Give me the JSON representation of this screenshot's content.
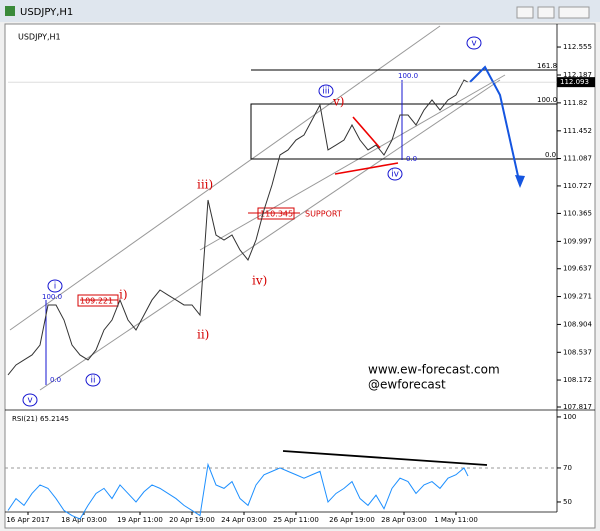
{
  "chart_data": [
    {
      "type": "line",
      "window_title": "USDJPY,H1",
      "title": "USDJPY,H1",
      "x": [
        0,
        2,
        4,
        6,
        8,
        10,
        12,
        14,
        16,
        18,
        20,
        22,
        24,
        26,
        28,
        30,
        32,
        34,
        36,
        38,
        40,
        42,
        44,
        46,
        48,
        50,
        52,
        54,
        56,
        58,
        60,
        62,
        64,
        66,
        68,
        70,
        72,
        74,
        76,
        78,
        80,
        82,
        84,
        86,
        88,
        90,
        92,
        94,
        96,
        98,
        100,
        102,
        104,
        106,
        108,
        110,
        112,
        114,
        115
      ],
      "series": [
        {
          "name": "USDJPY",
          "color": "#333333",
          "values": [
            108.239,
            108.37,
            108.436,
            108.502,
            108.633,
            109.16,
            109.16,
            108.962,
            108.633,
            108.502,
            108.436,
            108.568,
            108.831,
            108.962,
            109.226,
            108.962,
            108.831,
            109.028,
            109.226,
            109.357,
            109.291,
            109.226,
            109.16,
            109.16,
            109.028,
            110.542,
            110.081,
            110.015,
            110.081,
            109.884,
            109.752,
            110.015,
            110.41,
            110.739,
            111.134,
            111.2,
            111.331,
            111.397,
            111.594,
            111.792,
            111.2,
            111.265,
            111.331,
            111.529,
            111.331,
            111.2,
            111.265,
            111.134,
            111.331,
            111.66,
            111.66,
            111.529,
            111.726,
            111.858,
            111.726,
            111.858,
            111.923,
            112.121,
            112.093
          ]
        }
      ],
      "xlim": [
        0,
        136
      ],
      "ylim": [
        107.804,
        112.845
      ],
      "yticks": [
        112.555,
        112.187,
        111.82,
        111.452,
        111.087,
        110.727,
        110.365,
        109.997,
        109.637,
        109.271,
        108.904,
        108.537,
        108.172,
        107.817
      ],
      "grid": false,
      "annotations": [
        "v",
        "iii",
        "v)",
        "100.0",
        "161.8",
        "100.0",
        "0.0",
        "0.0",
        "iv",
        "iii)",
        "110.345",
        "SUPPORT",
        "iv)",
        "i",
        "100.0",
        "109.221",
        "i)",
        "ii)",
        "ii",
        "0.0",
        "v",
        "www.ew-forecast.com",
        "@ewforecast"
      ]
    },
    {
      "type": "line",
      "title": "RSI(21)",
      "x": [
        0,
        2,
        4,
        6,
        8,
        10,
        12,
        14,
        16,
        18,
        20,
        22,
        24,
        26,
        28,
        30,
        32,
        34,
        36,
        38,
        40,
        42,
        44,
        46,
        48,
        50,
        52,
        54,
        56,
        58,
        60,
        62,
        64,
        66,
        68,
        70,
        72,
        74,
        76,
        78,
        80,
        82,
        84,
        86,
        88,
        90,
        92,
        94,
        96,
        98,
        100,
        102,
        104,
        106,
        108,
        110,
        112,
        114,
        115
      ],
      "series": [
        {
          "name": "RSI(21)",
          "color": "#1e90ff",
          "values": [
            45,
            52,
            48,
            55,
            60,
            58,
            52,
            45,
            42,
            40,
            48,
            55,
            58,
            52,
            60,
            55,
            50,
            56,
            60,
            58,
            55,
            52,
            48,
            45,
            42,
            72,
            60,
            58,
            62,
            52,
            48,
            60,
            66,
            68,
            70,
            68,
            66,
            64,
            66,
            68,
            50,
            55,
            58,
            62,
            52,
            48,
            54,
            46,
            58,
            64,
            62,
            55,
            60,
            62,
            58,
            64,
            66,
            70,
            65.2145
          ]
        }
      ],
      "xlim": [
        0,
        136
      ],
      "ylim": [
        44.1,
        102.9
      ],
      "yticks": [
        100,
        70,
        50
      ],
      "xticks": [
        {
          "value": 5,
          "label": "16 Apr 2017"
        },
        {
          "value": 19,
          "label": "18 Apr 03:00"
        },
        {
          "value": 33,
          "label": "19 Apr 11:00"
        },
        {
          "value": 46,
          "label": "20 Apr 19:00"
        },
        {
          "value": 59,
          "label": "24 Apr 03:00"
        },
        {
          "value": 72,
          "label": "25 Apr 11:00"
        },
        {
          "value": 86,
          "label": "26 Apr 19:00"
        },
        {
          "value": 99,
          "label": "28 Apr 03:00"
        },
        {
          "value": 112,
          "label": "1 May 11:00"
        }
      ]
    }
  ]
}
